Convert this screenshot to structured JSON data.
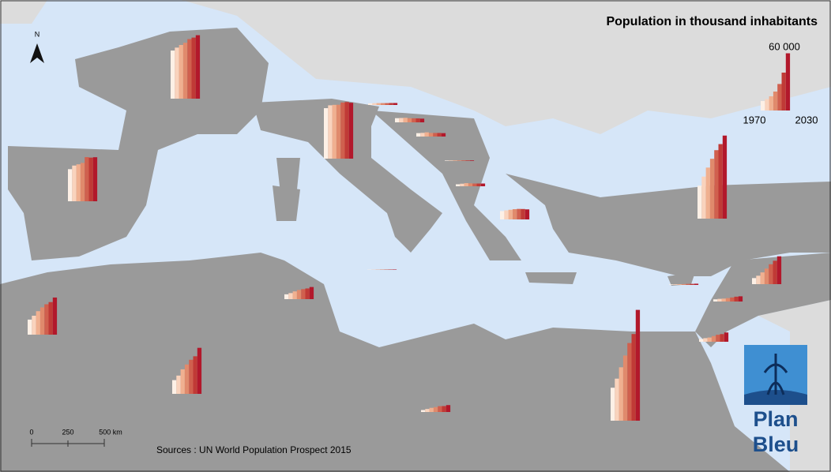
{
  "chart_data": {
    "type": "bar",
    "title": "Population in thousand inhabitants",
    "colors": [
      "#fdf0e6",
      "#f9d3bd",
      "#f0b090",
      "#e08a6c",
      "#d0604e",
      "#c03a36",
      "#b2182b"
    ],
    "legend": {
      "values": [
        10000,
        12000,
        15000,
        20000,
        28000,
        40000,
        60000
      ],
      "scale": {
        "value": 60000,
        "label": "60 000"
      },
      "start": "1970",
      "end": "2030"
    },
    "charts": [
      {
        "values": [
          50800,
          53900,
          56700,
          59000,
          62900,
          64500,
          67000
        ]
      },
      {
        "values": [
          33900,
          37700,
          39000,
          40500,
          46600,
          46100,
          46500
        ]
      },
      {
        "values": [
          53300,
          56300,
          56800,
          56900,
          59300,
          59800,
          59000
        ]
      },
      {
        "values": [
          34800,
          44400,
          53900,
          63200,
          72300,
          78700,
          87700
        ]
      },
      {
        "values": [
          34800,
          44400,
          56400,
          68800,
          82000,
          91500,
          117000
        ]
      },
      {
        "values": [
          14500,
          19300,
          25900,
          31000,
          36000,
          39700,
          48600
        ]
      },
      {
        "values": [
          15900,
          20000,
          24800,
          28800,
          32100,
          34400,
          39200
        ]
      },
      {
        "values": [
          5100,
          6400,
          8200,
          9700,
          10600,
          11300,
          12800
        ]
      },
      {
        "values": [
          2100,
          3200,
          4400,
          5200,
          6200,
          6300,
          7300
        ]
      },
      {
        "values": [
          6400,
          8900,
          12400,
          16400,
          21000,
          24700,
          29400
        ]
      },
      {
        "values": [
          2300,
          2800,
          3100,
          3600,
          4300,
          5100,
          5500
        ]
      },
      {
        "values": [
          2900,
          3800,
          4500,
          6000,
          7400,
          8100,
          9800
        ]
      },
      {
        "values": [
          610,
          680,
          770,
          940,
          1100,
          1160,
          1300
        ]
      },
      {
        "values": [
          8800,
          9600,
          10200,
          10800,
          11100,
          11000,
          10600
        ]
      },
      {
        "values": [
          2100,
          2700,
          3300,
          3100,
          2900,
          2900,
          2900
        ]
      },
      {
        "values": [
          520,
          580,
          620,
          600,
          620,
          630,
          620
        ]
      },
      {
        "values": [
          3600,
          3900,
          4500,
          3800,
          3800,
          3800,
          3600
        ]
      },
      {
        "values": [
          4400,
          4600,
          4800,
          4400,
          4300,
          4200,
          3900
        ]
      },
      {
        "values": [
          1700,
          1900,
          2000,
          2000,
          2000,
          2100,
          2100
        ]
      },
      {
        "values": [
          300,
          320,
          360,
          390,
          410,
          420,
          430
        ]
      }
    ]
  },
  "north": "N",
  "scale_bar": [
    "0",
    "250",
    "500 km"
  ],
  "source": "Sources : UN World Population Prospect 2015",
  "logo": [
    "Plan",
    "Bleu"
  ]
}
